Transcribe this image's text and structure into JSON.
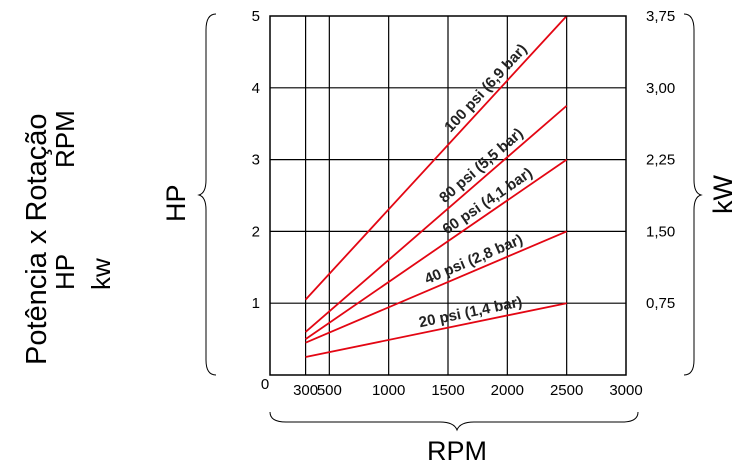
{
  "side_title": {
    "line1": "Potência x Rotação",
    "line2": "RPM",
    "line3": "HP",
    "line4": "kw"
  },
  "chart_data": {
    "type": "line",
    "title": "",
    "xlabel": "RPM",
    "ylabel": "HP",
    "y2label": "kW",
    "xlim": [
      0,
      3000
    ],
    "ylim": [
      0,
      5
    ],
    "y2lim": [
      0,
      3.75
    ],
    "grid": true,
    "x_origin_label": "0",
    "x_ticks": [
      300,
      500,
      1000,
      1500,
      2000,
      2500,
      3000
    ],
    "x_tick_labels": [
      "300",
      "500",
      "1000",
      "1500",
      "2000",
      "2500",
      "3000"
    ],
    "y_ticks": [
      1,
      2,
      3,
      4,
      5
    ],
    "y_tick_labels": [
      "1",
      "2",
      "3",
      "4",
      "5"
    ],
    "y2_ticks": [
      0.75,
      1.5,
      2.25,
      3.0,
      3.75
    ],
    "y2_tick_labels": [
      "0,75",
      "1,50",
      "2,25",
      "3,00",
      "3,75"
    ],
    "series": [
      {
        "name": "100 psi (6,9 bar)",
        "x": [
          300,
          2500
        ],
        "y": [
          1.05,
          5.0
        ],
        "color": "#e30613"
      },
      {
        "name": "80 psi (5,5 bar)",
        "x": [
          300,
          2500
        ],
        "y": [
          0.6,
          3.75
        ],
        "color": "#e30613"
      },
      {
        "name": "60 psi (4,1 bar)",
        "x": [
          300,
          2500
        ],
        "y": [
          0.5,
          3.0
        ],
        "color": "#e30613"
      },
      {
        "name": "40 psi (2,8 bar)",
        "x": [
          300,
          2500
        ],
        "y": [
          0.45,
          2.0
        ],
        "color": "#e30613"
      },
      {
        "name": "20 psi (1,4 bar)",
        "x": [
          300,
          2500
        ],
        "y": [
          0.25,
          1.0
        ],
        "color": "#e30613"
      }
    ]
  }
}
